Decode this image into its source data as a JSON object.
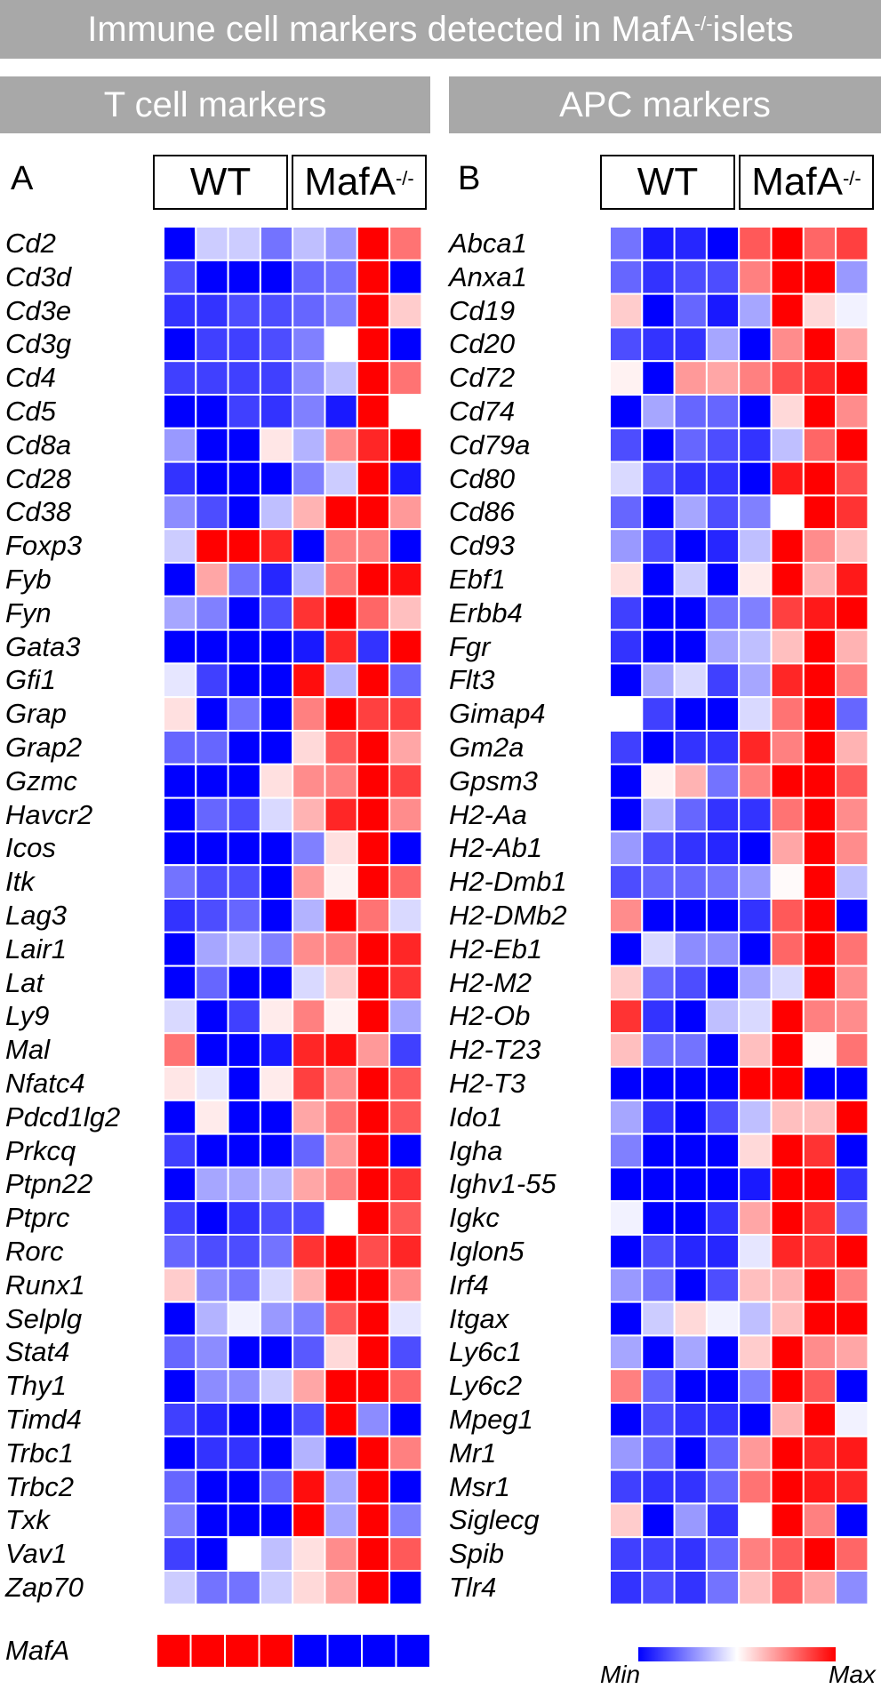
{
  "title": "Immune cell markers detected in MafA",
  "title_sup": "-/-",
  "title_suffix": " islets",
  "panels": [
    {
      "banner": "T cell markers",
      "letter": "A",
      "group_wt": "WT",
      "group_ko": "MafA",
      "group_ko_sup": "-/-"
    },
    {
      "banner": "APC markers",
      "letter": "B",
      "group_wt": "WT",
      "group_ko": "MafA",
      "group_ko_sup": "-/-"
    }
  ],
  "legend": {
    "min": "Min",
    "max": "Max",
    "colors": {
      "min": "#0000ff",
      "mid": "#ffffff",
      "max": "#ff0000"
    }
  },
  "chart_data": [
    {
      "type": "heatmap",
      "title": "T cell markers",
      "columns": [
        "WT",
        "WT",
        "WT",
        "WT",
        "MafA-/-",
        "MafA-/-",
        "MafA-/-",
        "MafA-/-"
      ],
      "rows": [
        "Cd2",
        "Cd3d",
        "Cd3e",
        "Cd3g",
        "Cd4",
        "Cd5",
        "Cd8a",
        "Cd28",
        "Cd38",
        "Foxp3",
        "Fyb",
        "Fyn",
        "Gata3",
        "Gfi1",
        "Grap",
        "Grap2",
        "Gzmc",
        "Havcr2",
        "Icos",
        "Itk",
        "Lag3",
        "Lair1",
        "Lat",
        "Ly9",
        "Mal",
        "Nfatc4",
        "Pdcd1lg2",
        "Prkcq",
        "Ptpn22",
        "Ptprc",
        "Rorc",
        "Runx1",
        "Selplg",
        "Stat4",
        "Thy1",
        "Timd4",
        "Trbc1",
        "Trbc2",
        "Txk",
        "Vav1",
        "Zap70"
      ],
      "values": [
        [
          -1.0,
          -0.2,
          -0.2,
          -0.55,
          -0.25,
          -0.4,
          1.0,
          0.55
        ],
        [
          -0.7,
          -1.0,
          -1.0,
          -1.0,
          -0.6,
          -0.55,
          1.0,
          -1.0
        ],
        [
          -0.8,
          -0.8,
          -0.7,
          -0.7,
          -0.6,
          -0.5,
          1.0,
          0.2
        ],
        [
          -1.0,
          -0.75,
          -0.75,
          -0.7,
          -0.5,
          0.0,
          1.0,
          -1.0
        ],
        [
          -0.75,
          -0.75,
          -0.75,
          -0.75,
          -0.45,
          -0.25,
          1.0,
          0.55
        ],
        [
          -1.0,
          -1.0,
          -0.75,
          -0.8,
          -0.5,
          -0.9,
          1.0,
          0.0
        ],
        [
          -0.4,
          -1.0,
          -1.0,
          0.1,
          -0.3,
          0.45,
          0.85,
          1.0
        ],
        [
          -0.8,
          -1.0,
          -1.0,
          -1.0,
          -0.5,
          -0.2,
          1.0,
          -0.9
        ],
        [
          -0.45,
          -0.7,
          -1.0,
          -0.25,
          0.3,
          1.0,
          1.0,
          0.4
        ],
        [
          -0.2,
          1.0,
          1.0,
          0.85,
          -1.0,
          0.5,
          0.5,
          -1.0
        ],
        [
          -1.0,
          0.35,
          -0.55,
          -0.85,
          -0.3,
          0.55,
          1.0,
          0.95
        ],
        [
          -0.35,
          -0.5,
          -1.0,
          -0.7,
          0.8,
          1.0,
          0.6,
          0.25
        ],
        [
          -1.0,
          -1.0,
          -1.0,
          -1.0,
          -0.9,
          0.85,
          -0.8,
          1.0
        ],
        [
          -0.1,
          -0.75,
          -1.0,
          -1.0,
          0.95,
          -0.3,
          1.0,
          -0.6
        ],
        [
          0.12,
          -1.0,
          -0.55,
          -1.0,
          0.5,
          1.0,
          0.75,
          0.75
        ],
        [
          -0.6,
          -0.6,
          -1.0,
          -1.0,
          0.15,
          0.65,
          1.0,
          0.35
        ],
        [
          -1.0,
          -1.0,
          -1.0,
          0.12,
          0.45,
          0.5,
          1.0,
          0.75
        ],
        [
          -1.0,
          -0.6,
          -0.7,
          -0.15,
          0.3,
          0.85,
          1.0,
          0.45
        ],
        [
          -1.0,
          -1.0,
          -1.0,
          -1.0,
          -0.5,
          0.12,
          1.0,
          -1.0
        ],
        [
          -0.55,
          -0.7,
          -0.7,
          -1.0,
          0.4,
          0.05,
          1.0,
          0.6
        ],
        [
          -0.8,
          -0.7,
          -0.6,
          -1.0,
          -0.3,
          1.0,
          0.55,
          -0.15
        ],
        [
          -1.0,
          -0.35,
          -0.25,
          -0.5,
          0.45,
          0.5,
          1.0,
          0.85
        ],
        [
          -1.0,
          -0.6,
          -1.0,
          -1.0,
          -0.15,
          0.2,
          1.0,
          0.8
        ],
        [
          -0.15,
          -1.0,
          -0.75,
          0.08,
          0.5,
          0.05,
          1.0,
          -0.35
        ],
        [
          0.55,
          -1.0,
          -1.0,
          -0.9,
          0.85,
          0.95,
          0.4,
          -0.75
        ],
        [
          0.1,
          -0.1,
          -1.0,
          0.08,
          0.75,
          0.45,
          1.0,
          0.65
        ],
        [
          -1.0,
          0.08,
          -1.0,
          -1.0,
          0.35,
          0.55,
          1.0,
          0.65
        ],
        [
          -0.75,
          -1.0,
          -1.0,
          -1.0,
          -0.6,
          0.4,
          1.0,
          -1.0
        ],
        [
          -1.0,
          -0.35,
          -0.35,
          -0.3,
          0.35,
          0.5,
          1.0,
          0.8
        ],
        [
          -0.75,
          -1.0,
          -0.8,
          -0.7,
          -0.7,
          0.0,
          1.0,
          0.65
        ],
        [
          -0.6,
          -0.7,
          -0.7,
          -0.55,
          0.8,
          1.0,
          0.7,
          0.85
        ],
        [
          0.2,
          -0.45,
          -0.55,
          -0.15,
          0.3,
          1.0,
          1.0,
          0.45
        ],
        [
          -1.0,
          -0.3,
          -0.05,
          -0.4,
          -0.5,
          0.65,
          1.0,
          -0.1
        ],
        [
          -0.6,
          -0.45,
          -1.0,
          -1.0,
          -0.65,
          0.15,
          1.0,
          -0.7
        ],
        [
          -1.0,
          -0.45,
          -0.45,
          -0.2,
          0.35,
          1.0,
          1.0,
          0.6
        ],
        [
          -0.75,
          -0.85,
          -1.0,
          -1.0,
          -0.7,
          1.0,
          -0.45,
          -1.0
        ],
        [
          -1.0,
          -0.8,
          -0.8,
          -1.0,
          -0.3,
          -1.0,
          1.0,
          0.5
        ],
        [
          -0.6,
          -1.0,
          -1.0,
          -0.6,
          0.95,
          -0.35,
          1.0,
          -1.0
        ],
        [
          -0.5,
          -1.0,
          -1.0,
          -1.0,
          1.0,
          -0.35,
          1.0,
          -0.5
        ],
        [
          -0.75,
          -1.0,
          0.0,
          -0.25,
          0.12,
          0.45,
          1.0,
          0.65
        ],
        [
          -0.2,
          -0.55,
          -0.55,
          -0.2,
          0.15,
          0.35,
          1.0,
          -1.0
        ]
      ]
    },
    {
      "type": "heatmap",
      "title": "APC markers",
      "columns": [
        "WT",
        "WT",
        "WT",
        "WT",
        "MafA-/-",
        "MafA-/-",
        "MafA-/-",
        "MafA-/-"
      ],
      "rows": [
        "Abca1",
        "Anxa1",
        "Cd19",
        "Cd20",
        "Cd72",
        "Cd74",
        "Cd79a",
        "Cd80",
        "Cd86",
        "Cd93",
        "Ebf1",
        "Erbb4",
        "Fgr",
        "Flt3",
        "Gimap4",
        "Gm2a",
        "Gpsm3",
        "H2-Aa",
        "H2-Ab1",
        "H2-Dmb1",
        "H2-DMb2",
        "H2-Eb1",
        "H2-M2",
        "H2-Ob",
        "H2-T23",
        "H2-T3",
        "Ido1",
        "Igha",
        "Ighv1-55",
        "Igkc",
        "Iglon5",
        "Irf4",
        "Itgax",
        "Ly6c1",
        "Ly6c2",
        "Mpeg1",
        "Mr1",
        "Msr1",
        "Siglecg",
        "Spib",
        "Tlr4"
      ],
      "values": [
        [
          -0.55,
          -0.9,
          -0.85,
          -1.0,
          0.65,
          1.0,
          0.6,
          0.75
        ],
        [
          -0.6,
          -0.8,
          -0.7,
          -0.7,
          0.5,
          1.0,
          1.0,
          -0.4
        ],
        [
          0.2,
          -1.0,
          -0.6,
          -0.9,
          -0.35,
          1.0,
          0.15,
          -0.05
        ],
        [
          -0.7,
          -0.8,
          -0.8,
          -0.35,
          -1.0,
          0.45,
          1.0,
          0.35
        ],
        [
          0.05,
          -1.0,
          0.4,
          0.35,
          0.5,
          0.7,
          0.85,
          1.0
        ],
        [
          -1.0,
          -0.35,
          -0.6,
          -0.6,
          -1.0,
          0.15,
          1.0,
          0.45
        ],
        [
          -0.7,
          -1.0,
          -0.6,
          -0.7,
          -0.8,
          -0.25,
          0.6,
          1.0
        ],
        [
          -0.15,
          -0.7,
          -0.8,
          -0.8,
          -1.0,
          0.9,
          1.0,
          0.7
        ],
        [
          -0.6,
          -1.0,
          -0.35,
          -0.7,
          -0.5,
          0.0,
          1.0,
          0.8
        ],
        [
          -0.4,
          -0.7,
          -1.0,
          -0.85,
          -0.25,
          1.0,
          0.45,
          0.25
        ],
        [
          0.12,
          -1.0,
          -0.2,
          -1.0,
          0.08,
          1.0,
          0.3,
          0.9
        ],
        [
          -0.75,
          -1.0,
          -1.0,
          -0.55,
          -0.5,
          0.75,
          0.9,
          1.0
        ],
        [
          -0.8,
          -1.0,
          -1.0,
          -0.35,
          -0.25,
          0.25,
          1.0,
          0.3
        ],
        [
          -1.0,
          -0.35,
          -0.15,
          -0.75,
          -0.35,
          0.85,
          1.0,
          0.5
        ],
        [
          0.0,
          -0.75,
          -1.0,
          -1.0,
          -0.15,
          0.55,
          1.0,
          -0.6
        ],
        [
          -0.75,
          -1.0,
          -0.8,
          -0.8,
          0.85,
          0.5,
          1.0,
          0.3
        ],
        [
          -1.0,
          0.05,
          0.3,
          -0.55,
          0.5,
          1.0,
          1.0,
          0.65
        ],
        [
          -1.0,
          -0.3,
          -0.6,
          -0.8,
          -0.8,
          0.55,
          1.0,
          0.45
        ],
        [
          -0.4,
          -0.7,
          -0.8,
          -0.85,
          -1.0,
          0.35,
          1.0,
          0.45
        ],
        [
          -0.7,
          -0.6,
          -0.6,
          -0.55,
          -0.4,
          0.02,
          1.0,
          -0.25
        ],
        [
          0.45,
          -1.0,
          -1.0,
          -1.0,
          -0.8,
          0.65,
          1.0,
          -1.0
        ],
        [
          -1.0,
          -0.15,
          -0.45,
          -0.45,
          -1.0,
          0.6,
          1.0,
          0.55
        ],
        [
          0.2,
          -0.6,
          -0.7,
          -1.0,
          -0.35,
          -0.15,
          1.0,
          0.45
        ],
        [
          0.8,
          -0.8,
          -1.0,
          -0.25,
          -0.15,
          1.0,
          0.5,
          0.45
        ],
        [
          0.25,
          -0.55,
          -0.55,
          -1.0,
          0.25,
          1.0,
          0.02,
          0.55
        ],
        [
          -1.0,
          -1.0,
          -1.0,
          -1.0,
          1.0,
          1.0,
          -1.0,
          -1.0
        ],
        [
          -0.35,
          -0.8,
          -1.0,
          -0.7,
          -0.25,
          0.25,
          0.25,
          1.0
        ],
        [
          -0.5,
          -1.0,
          -1.0,
          -1.0,
          0.15,
          1.0,
          0.8,
          -1.0
        ],
        [
          -1.0,
          -1.0,
          -1.0,
          -1.0,
          -0.9,
          1.0,
          1.0,
          -0.8
        ],
        [
          -0.05,
          -1.0,
          -1.0,
          -0.8,
          0.35,
          1.0,
          0.8,
          -0.55
        ],
        [
          -1.0,
          -0.7,
          -0.85,
          -0.85,
          -0.1,
          0.85,
          0.8,
          1.0
        ],
        [
          -0.4,
          -0.55,
          -1.0,
          -0.7,
          0.25,
          0.3,
          1.0,
          0.5
        ],
        [
          -1.0,
          -0.2,
          0.15,
          -0.05,
          -0.25,
          0.25,
          1.0,
          1.0
        ],
        [
          -0.35,
          -1.0,
          -0.35,
          -1.0,
          0.2,
          1.0,
          0.45,
          0.35
        ],
        [
          0.5,
          -0.6,
          -1.0,
          -1.0,
          -0.5,
          1.0,
          0.65,
          -1.0
        ],
        [
          -1.0,
          -0.7,
          -0.8,
          -0.8,
          -1.0,
          0.3,
          1.0,
          -0.05
        ],
        [
          -0.4,
          -0.6,
          -1.0,
          -0.6,
          0.4,
          1.0,
          0.85,
          0.9
        ],
        [
          -0.75,
          -0.8,
          -0.8,
          -0.6,
          0.55,
          1.0,
          0.9,
          0.85
        ],
        [
          0.2,
          -1.0,
          -0.4,
          -0.8,
          0.0,
          1.0,
          0.5,
          -1.0
        ],
        [
          -0.75,
          -0.75,
          -0.8,
          -0.6,
          0.5,
          0.65,
          1.0,
          0.6
        ],
        [
          -0.8,
          -0.7,
          -0.8,
          -0.55,
          0.25,
          0.65,
          0.35,
          -0.45
        ]
      ]
    },
    {
      "type": "heatmap",
      "title": "",
      "rows": [
        "MafA"
      ],
      "columns": [
        "WT",
        "WT",
        "WT",
        "WT",
        "MafA-/-",
        "MafA-/-",
        "MafA-/-",
        "MafA-/-"
      ],
      "values": [
        [
          1.0,
          1.0,
          1.0,
          1.0,
          -1.0,
          -1.0,
          -1.0,
          -1.0
        ]
      ]
    }
  ]
}
